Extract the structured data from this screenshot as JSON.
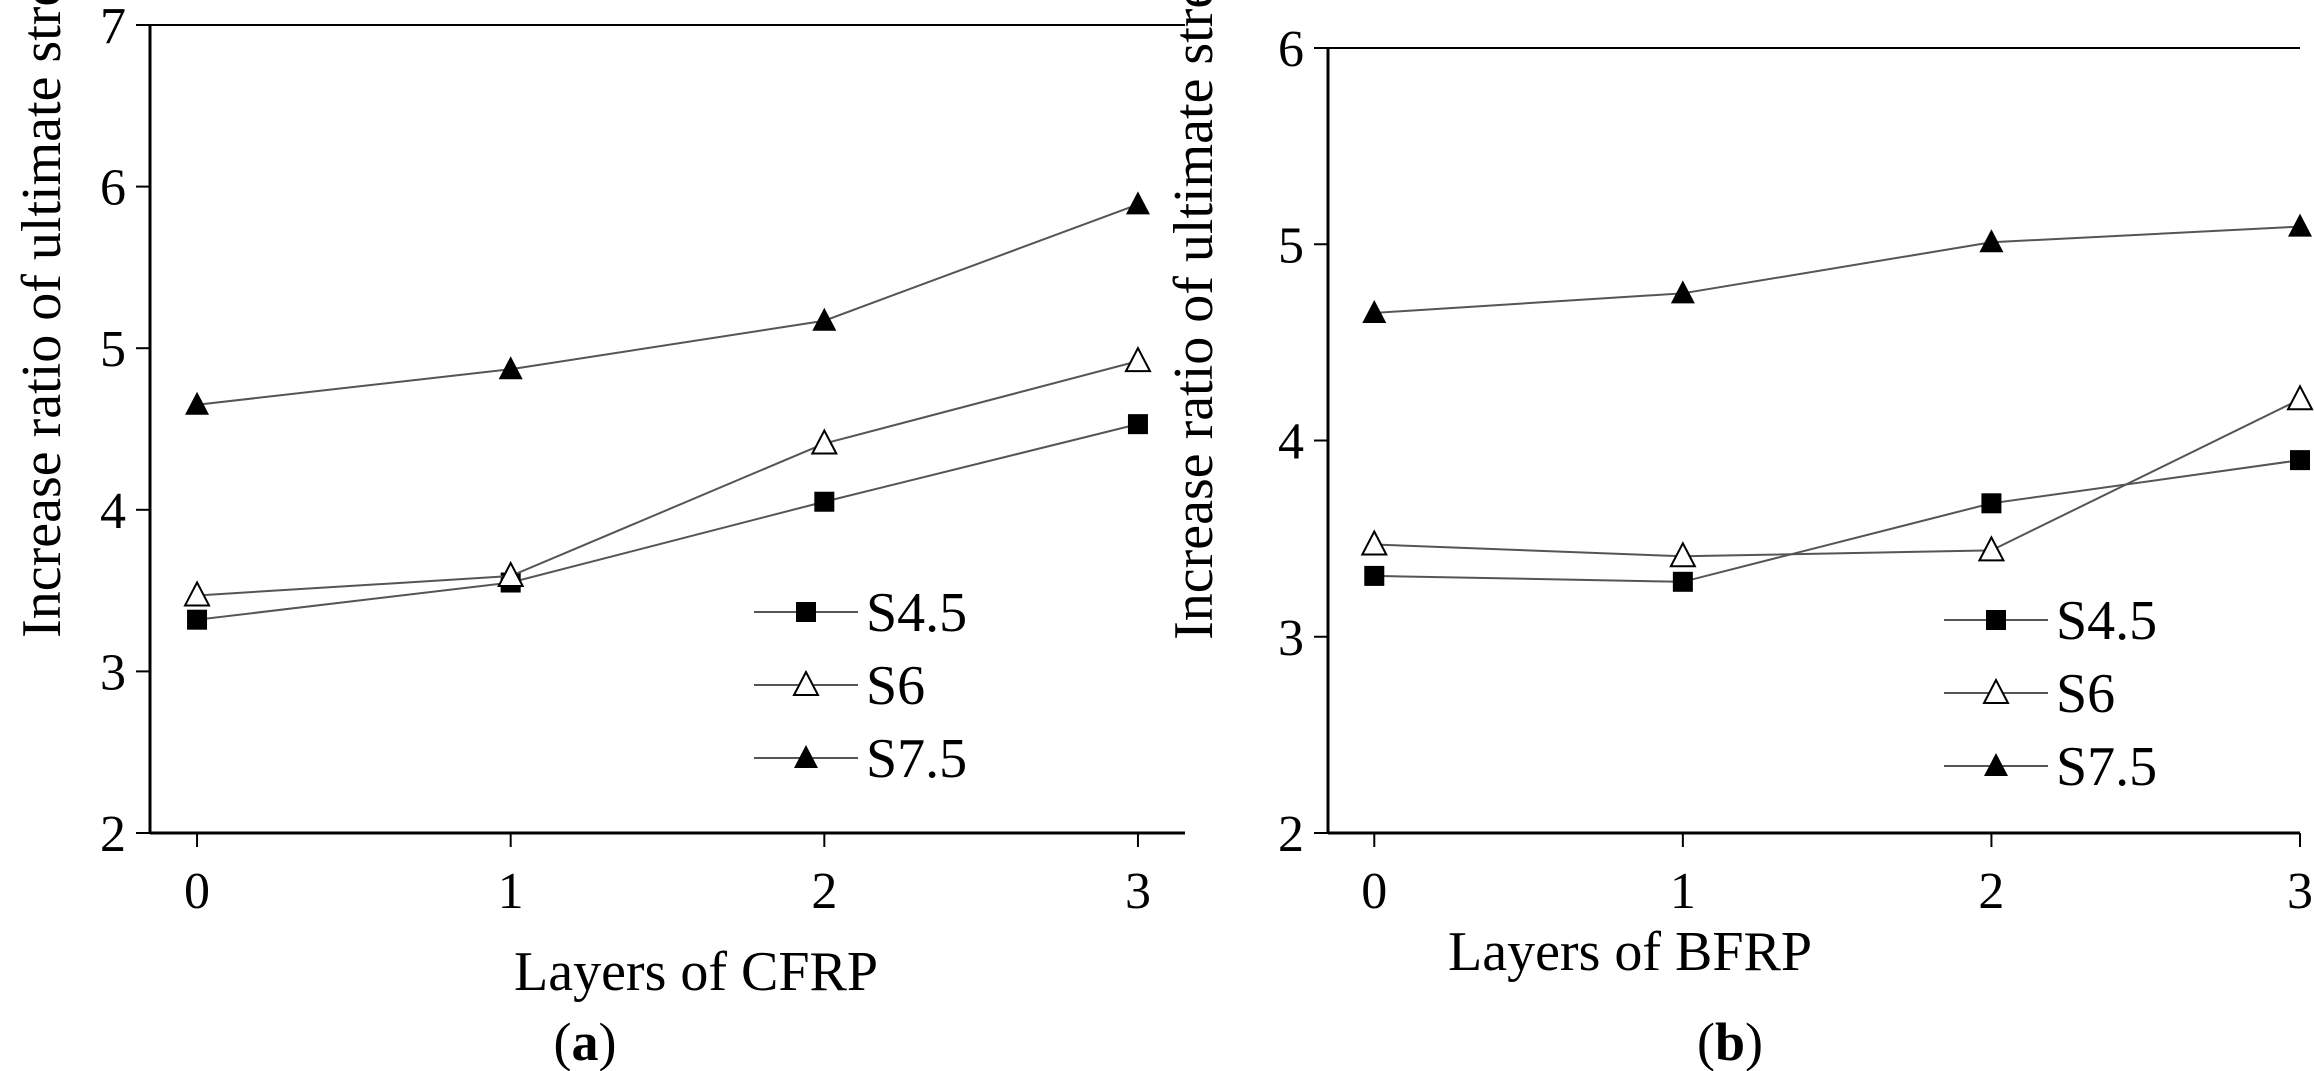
{
  "chart_data": [
    {
      "id": "a",
      "type": "line",
      "panel_label": {
        "open": "(",
        "letter": "a",
        "close": ")"
      },
      "xlabel": "Layers of CFRP",
      "ylabel": "Increase ratio of ultimate stress",
      "xlim": [
        -0.15,
        3.15
      ],
      "ylim": [
        2,
        7
      ],
      "x": [
        0,
        1,
        2,
        3
      ],
      "xticks": [
        0,
        1,
        2,
        3
      ],
      "yticks": [
        2,
        3,
        4,
        5,
        6,
        7
      ],
      "legend_position": "bottom-right",
      "series": [
        {
          "name": "S4.5",
          "marker": "filled-square",
          "values": [
            3.32,
            3.55,
            4.05,
            4.53
          ]
        },
        {
          "name": "S6",
          "marker": "open-triangle",
          "values": [
            3.47,
            3.59,
            4.41,
            4.92
          ]
        },
        {
          "name": "S7.5",
          "marker": "filled-triangle",
          "values": [
            4.65,
            4.87,
            5.17,
            5.89
          ]
        }
      ]
    },
    {
      "id": "b",
      "type": "line",
      "panel_label": {
        "open": "(",
        "letter": "b",
        "close": ")"
      },
      "xlabel": "Layers of BFRP",
      "ylabel": "Increase ratio of ultimate stress",
      "xlim": [
        -0.15,
        3.0
      ],
      "ylim": [
        2,
        6
      ],
      "x": [
        0,
        1,
        2,
        3
      ],
      "xticks": [
        0,
        1,
        2,
        3
      ],
      "yticks": [
        2,
        3,
        4,
        5,
        6
      ],
      "legend_position": "bottom-right",
      "series": [
        {
          "name": "S4.5",
          "marker": "filled-square",
          "values": [
            3.31,
            3.28,
            3.68,
            3.9
          ]
        },
        {
          "name": "S6",
          "marker": "open-triangle",
          "values": [
            3.47,
            3.41,
            3.44,
            4.21
          ]
        },
        {
          "name": "S7.5",
          "marker": "filled-triangle",
          "values": [
            4.65,
            4.75,
            5.01,
            5.09
          ]
        }
      ]
    }
  ]
}
